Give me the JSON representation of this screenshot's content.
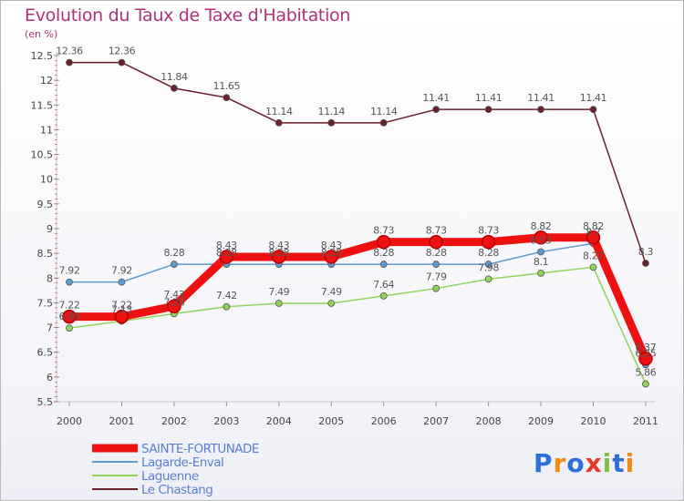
{
  "title": "Evolution du Taux de Taxe d'Habitation",
  "subtitle": "(en %)",
  "logo_text": "Proxiti",
  "chart_data": {
    "type": "line",
    "x": [
      "2000",
      "2001",
      "2002",
      "2003",
      "2004",
      "2005",
      "2006",
      "2007",
      "2008",
      "2009",
      "2010",
      "2011"
    ],
    "ylim": [
      5.5,
      12.5
    ],
    "yticks": [
      "5.5",
      "6",
      "6.5",
      "7",
      "7.5",
      "8",
      "8.5",
      "9",
      "9.5",
      "10",
      "10.5",
      "11",
      "11.5",
      "12",
      "12.5"
    ],
    "grid": false,
    "legend_position": "bottom-left",
    "series": [
      {
        "name": "Le Chastang",
        "color": "#6b1f2a",
        "values": [
          12.36,
          12.36,
          11.84,
          11.65,
          11.14,
          11.14,
          11.14,
          11.41,
          11.41,
          11.41,
          11.41,
          8.3
        ],
        "labels": [
          "12.36",
          "12.36",
          "11.84",
          "11.65",
          "11.14",
          "11.14",
          "11.14",
          "11.41",
          "11.41",
          "11.41",
          "11.41",
          "8.3"
        ]
      },
      {
        "name": "Lagarde-Enval",
        "color": "#5b9bd0",
        "values": [
          7.92,
          7.92,
          8.28,
          8.28,
          8.28,
          8.28,
          8.28,
          8.28,
          8.28,
          8.53,
          8.7,
          6.25
        ],
        "labels": [
          "7.92",
          "7.92",
          "8.28",
          "8.28",
          "8.28",
          "8.28",
          "8.28",
          "8.28",
          "8.28",
          "8.53",
          "8.7",
          "6.25"
        ]
      },
      {
        "name": "Laguenne",
        "color": "#90d45a",
        "values": [
          6.99,
          7.13,
          7.28,
          7.42,
          7.49,
          7.49,
          7.64,
          7.79,
          7.98,
          8.1,
          8.22,
          5.86
        ],
        "labels": [
          "6.99",
          "7.13",
          "7.28",
          "7.42",
          "7.49",
          "7.49",
          "7.64",
          "7.79",
          "7.98",
          "8.1",
          "8.22",
          "5.86"
        ]
      },
      {
        "name": "SAINTE-FORTUNADE",
        "color": "#ee1111",
        "values": [
          7.22,
          7.22,
          7.43,
          8.43,
          8.43,
          8.43,
          8.73,
          8.73,
          8.73,
          8.82,
          8.82,
          6.37
        ],
        "labels": [
          "7.22",
          "7.22",
          "7.43",
          "8.43",
          "8.43",
          "8.43",
          "8.73",
          "8.73",
          "8.73",
          "8.82",
          "8.82",
          "6.37"
        ]
      }
    ],
    "legend": [
      "SAINTE-FORTUNADE",
      "Lagarde-Enval",
      "Laguenne",
      "Le Chastang"
    ]
  }
}
